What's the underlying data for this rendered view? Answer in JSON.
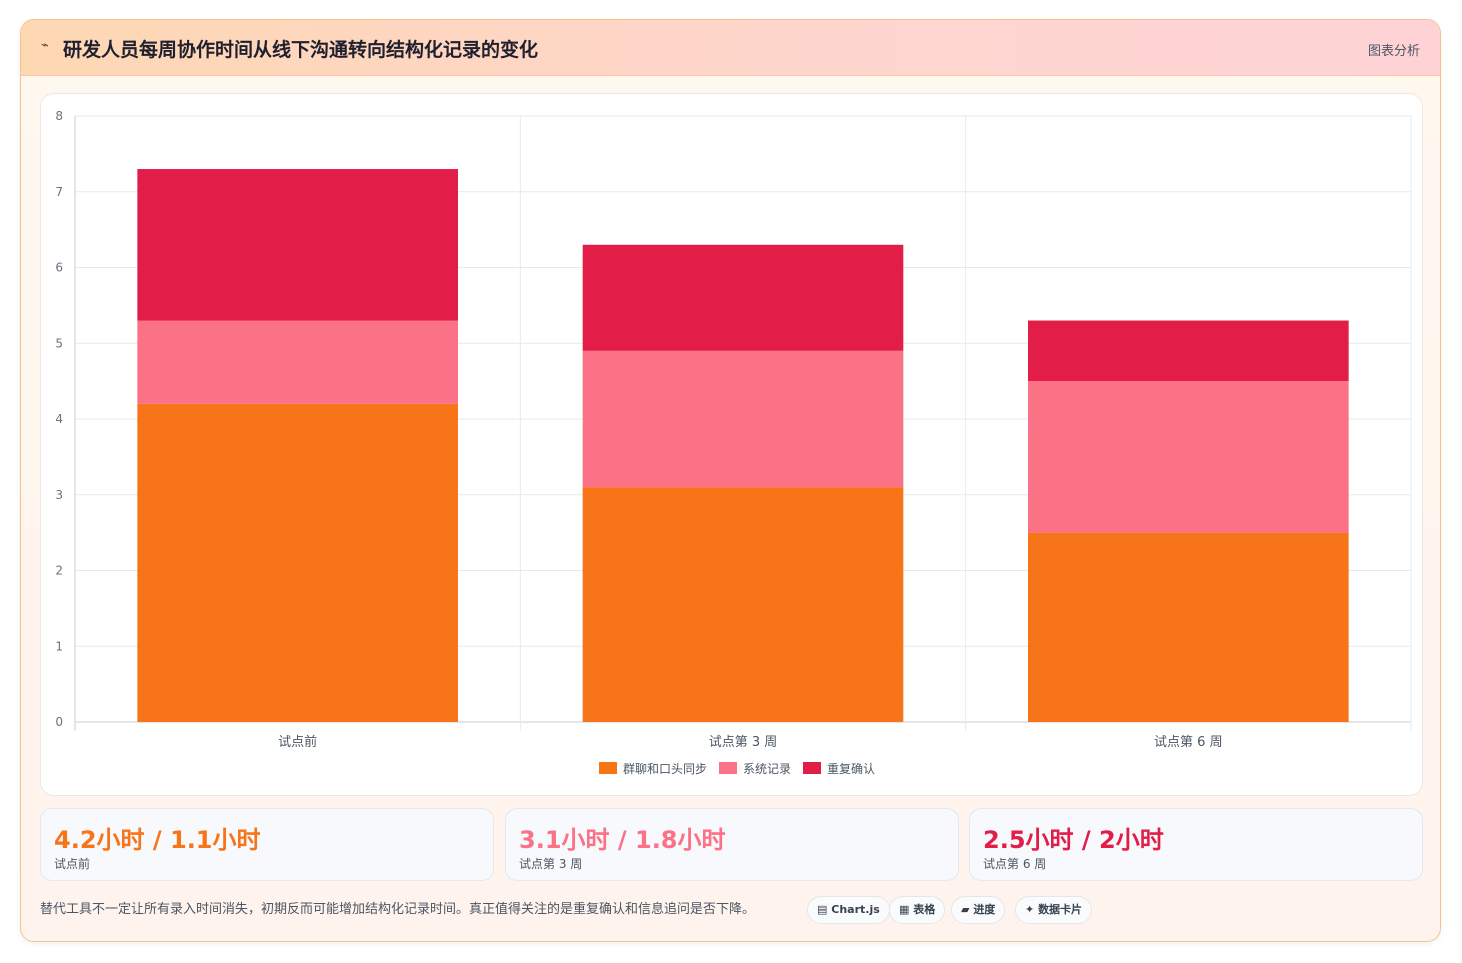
{
  "header": {
    "icon": "pulse-icon",
    "title": "研发人员每周协作时间从线下沟通转向结构化记录的变化",
    "link_label": "图表分析"
  },
  "chart_data": {
    "type": "bar",
    "stacked": true,
    "categories": [
      "试点前",
      "试点第 3 周",
      "试点第 6 周"
    ],
    "series": [
      {
        "name": "群聊和口头同步",
        "values": [
          4.2,
          3.1,
          2.5
        ],
        "color": "#f77418"
      },
      {
        "name": "系统记录",
        "values": [
          1.1,
          1.8,
          2.0
        ],
        "color": "#fb7185"
      },
      {
        "name": "重复确认",
        "values": [
          2.0,
          1.4,
          0.8
        ],
        "color": "#e11d48"
      }
    ],
    "ylim": [
      0,
      8
    ],
    "yticks": [
      0,
      1,
      2,
      3,
      4,
      5,
      6,
      7,
      8
    ],
    "grid": true,
    "legend": "bottom"
  },
  "stats": [
    {
      "value": "4.2小时 / 1.1小时",
      "label": "试点前",
      "color": "#f77418"
    },
    {
      "value": "3.1小时 / 1.8小时",
      "label": "试点第 3 周",
      "color": "#fb7185"
    },
    {
      "value": "2.5小时 / 2小时",
      "label": "试点第 6 周",
      "color": "#e11d48"
    }
  ],
  "footer": {
    "note": "替代工具不一定让所有录入时间消失，初期反而可能增加结构化记录时间。真正值得关注的是重复确认和信息追问是否下降。",
    "tags": [
      {
        "icon": "▤",
        "label": "Chart.js"
      },
      {
        "icon": "▦",
        "label": "表格"
      },
      {
        "icon": "▰",
        "label": "进度"
      },
      {
        "icon": "✦",
        "label": "数据卡片"
      }
    ]
  }
}
